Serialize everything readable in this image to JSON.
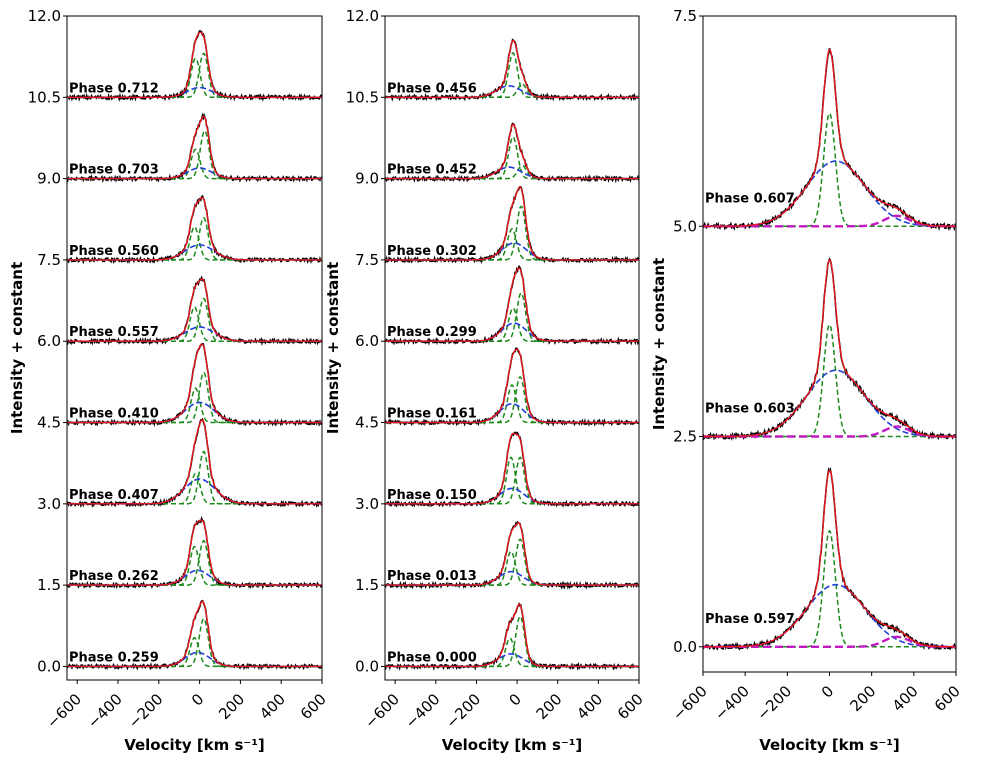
{
  "chart_data": [
    {
      "type": "line",
      "panel": "left",
      "xlabel": "Velocity [km s⁻¹]",
      "ylabel": "Intensity + constant",
      "xlim": [
        -650,
        600
      ],
      "ylim": [
        -0.25,
        12.0
      ],
      "xticks": [
        -600,
        -400,
        -200,
        0,
        200,
        400,
        600
      ],
      "xtick_labels": [
        "−600",
        "−400",
        "−200",
        "0",
        "200",
        "400",
        "600"
      ],
      "yticks": [
        0.0,
        1.5,
        3.0,
        4.5,
        6.0,
        7.5,
        9.0,
        10.5,
        12.0
      ],
      "ytick_labels": [
        "0.0",
        "1.5",
        "3.0",
        "4.5",
        "6.0",
        "7.5",
        "9.0",
        "10.5",
        "12.0"
      ],
      "series_styles": [
        {
          "name": "observed",
          "color": "#000000"
        },
        {
          "name": "total fit",
          "color": "#e8161d"
        },
        {
          "name": "narrow gaussians",
          "color": "#1a8a1a"
        },
        {
          "name": "broad gaussian",
          "color": "#1f3ed6"
        }
      ],
      "spectra": [
        {
          "label": "Phase 0.259",
          "offset": 0.0,
          "peak": 1.2,
          "n1": [
            -25,
            0.45
          ],
          "n2": [
            20,
            0.75
          ],
          "broad": [
            -10,
            0.22,
            60
          ]
        },
        {
          "label": "Phase 0.262",
          "offset": 1.5,
          "peak": 1.2,
          "n1": [
            -25,
            0.65
          ],
          "n2": [
            20,
            0.75
          ],
          "broad": [
            -10,
            0.25,
            60
          ]
        },
        {
          "label": "Phase 0.407",
          "offset": 3.0,
          "peak": 1.55,
          "n1": [
            -20,
            0.55
          ],
          "n2": [
            20,
            0.95
          ],
          "broad": [
            0,
            0.45,
            75
          ]
        },
        {
          "label": "Phase 0.410",
          "offset": 4.5,
          "peak": 1.45,
          "n1": [
            -20,
            0.65
          ],
          "n2": [
            20,
            0.95
          ],
          "broad": [
            0,
            0.38,
            70
          ]
        },
        {
          "label": "Phase 0.557",
          "offset": 6.0,
          "peak": 1.15,
          "n1": [
            -25,
            0.6
          ],
          "n2": [
            20,
            0.75
          ],
          "broad": [
            0,
            0.25,
            70
          ]
        },
        {
          "label": "Phase 0.560",
          "offset": 7.5,
          "peak": 1.15,
          "n1": [
            -25,
            0.55
          ],
          "n2": [
            20,
            0.7
          ],
          "broad": [
            0,
            0.25,
            70
          ]
        },
        {
          "label": "Phase 0.703",
          "offset": 9.0,
          "peak": 1.15,
          "n1": [
            -20,
            0.55
          ],
          "n2": [
            25,
            0.9
          ],
          "broad": [
            0,
            0.2,
            60
          ]
        },
        {
          "label": "Phase 0.712",
          "offset": 10.5,
          "peak": 1.2,
          "n1": [
            -20,
            0.8
          ],
          "n2": [
            20,
            0.9
          ],
          "broad": [
            0,
            0.2,
            60
          ]
        }
      ]
    },
    {
      "type": "line",
      "panel": "middle",
      "xlabel": "Velocity [km s⁻¹]",
      "ylabel": "Intensity + constant",
      "xlim": [
        -650,
        600
      ],
      "ylim": [
        -0.25,
        12.0
      ],
      "xticks": [
        -600,
        -400,
        -200,
        0,
        200,
        400,
        600
      ],
      "xtick_labels": [
        "−600",
        "−400",
        "−200",
        "0",
        "200",
        "400",
        "600"
      ],
      "yticks": [
        0.0,
        1.5,
        3.0,
        4.5,
        6.0,
        7.5,
        9.0,
        10.5,
        12.0
      ],
      "ytick_labels": [
        "0.0",
        "1.5",
        "3.0",
        "4.5",
        "6.0",
        "7.5",
        "9.0",
        "10.5",
        "12.0"
      ],
      "spectra": [
        {
          "label": "Phase 0.000",
          "offset": 0.0,
          "peak": 1.15,
          "n1": [
            -35,
            0.45
          ],
          "n2": [
            15,
            0.8
          ],
          "broad": [
            -30,
            0.2,
            60
          ]
        },
        {
          "label": "Phase 0.013",
          "offset": 1.5,
          "peak": 1.15,
          "n1": [
            -30,
            0.55
          ],
          "n2": [
            15,
            0.75
          ],
          "broad": [
            -30,
            0.22,
            60
          ]
        },
        {
          "label": "Phase 0.150",
          "offset": 3.0,
          "peak": 1.3,
          "n1": [
            -30,
            0.75
          ],
          "n2": [
            15,
            0.75
          ],
          "broad": [
            -25,
            0.25,
            60
          ]
        },
        {
          "label": "Phase 0.161",
          "offset": 4.5,
          "peak": 1.35,
          "n1": [
            -25,
            0.7
          ],
          "n2": [
            15,
            0.85
          ],
          "broad": [
            -25,
            0.35,
            60
          ]
        },
        {
          "label": "Phase 0.299",
          "offset": 6.0,
          "peak": 1.35,
          "n1": [
            -20,
            0.55
          ],
          "n2": [
            20,
            0.8
          ],
          "broad": [
            -15,
            0.3,
            60
          ]
        },
        {
          "label": "Phase 0.302",
          "offset": 7.5,
          "peak": 1.35,
          "n1": [
            -25,
            0.55
          ],
          "n2": [
            20,
            0.95
          ],
          "broad": [
            -15,
            0.3,
            60
          ]
        },
        {
          "label": "Phase 0.452",
          "offset": 9.0,
          "peak": 1.0,
          "n1": [
            -20,
            0.8
          ],
          "n2": [
            25,
            0.25
          ],
          "broad": [
            -40,
            0.22,
            60
          ]
        },
        {
          "label": "Phase 0.456",
          "offset": 10.5,
          "peak": 1.05,
          "n1": [
            -20,
            0.85
          ],
          "n2": [
            25,
            0.25
          ],
          "broad": [
            -40,
            0.22,
            60
          ]
        }
      ]
    },
    {
      "type": "line",
      "panel": "right",
      "xlabel": "Velocity [km s⁻¹]",
      "ylabel": "Intensity + constant",
      "xlim": [
        -600,
        600
      ],
      "ylim": [
        -0.3,
        7.5
      ],
      "xticks": [
        -600,
        -400,
        -200,
        0,
        200,
        400,
        600
      ],
      "xtick_labels": [
        "−600",
        "−400",
        "−200",
        "0",
        "200",
        "400",
        "600"
      ],
      "yticks": [
        0.0,
        2.5,
        5.0,
        7.5
      ],
      "ytick_labels": [
        "0.0",
        "2.5",
        "5.0",
        "7.5"
      ],
      "extra_series_style": {
        "name": "redshifted component",
        "color": "#c11ac1"
      },
      "spectra": [
        {
          "label": "Phase 0.597",
          "offset": 0.0,
          "peak": 2.1,
          "n1": [
            0,
            1.4
          ],
          "broad": [
            30,
            0.75,
            140
          ],
          "extra": [
            320,
            0.12,
            60
          ]
        },
        {
          "label": "Phase 0.603",
          "offset": 2.5,
          "peak": 2.1,
          "n1": [
            0,
            1.35
          ],
          "broad": [
            30,
            0.8,
            140
          ],
          "extra": [
            320,
            0.12,
            60
          ]
        },
        {
          "label": "Phase 0.607",
          "offset": 5.0,
          "peak": 2.1,
          "n1": [
            0,
            1.3
          ],
          "broad": [
            30,
            0.75,
            140
          ],
          "extra": [
            320,
            0.12,
            60
          ]
        }
      ]
    }
  ]
}
